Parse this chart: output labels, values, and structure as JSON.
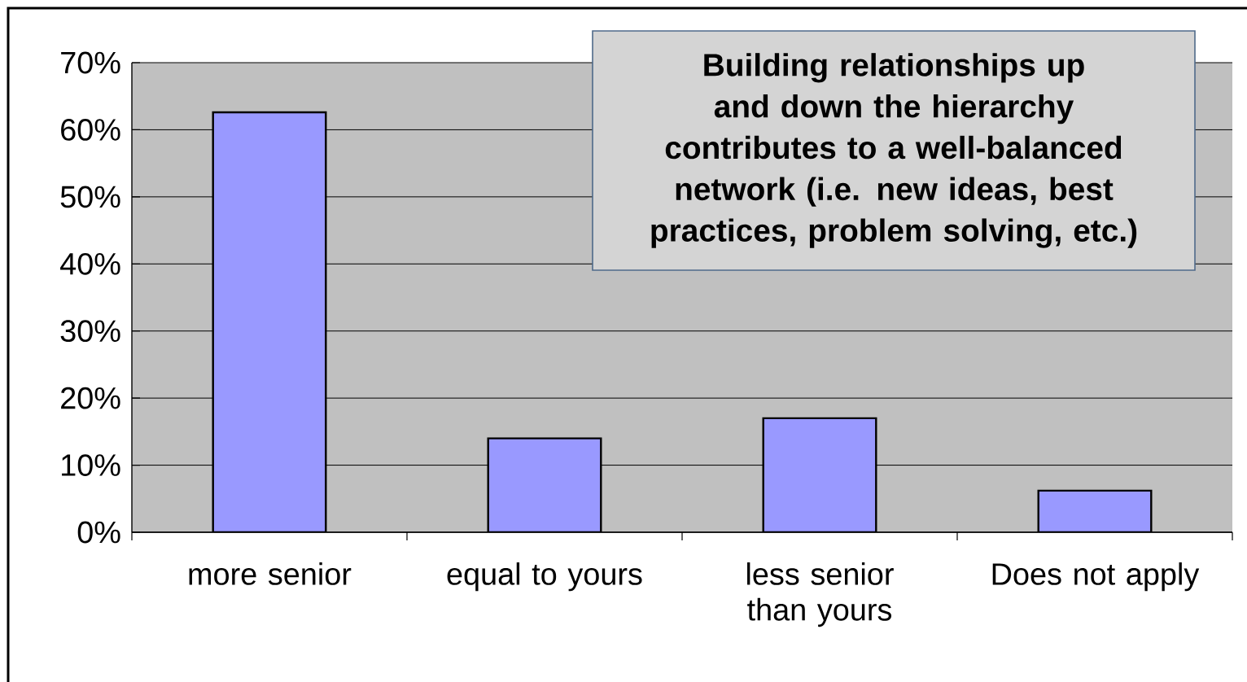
{
  "chart_data": {
    "type": "bar",
    "categories": [
      "more senior",
      "equal to yours",
      "less senior than yours",
      "Does not apply"
    ],
    "values": [
      62.6,
      14,
      17,
      6.2
    ],
    "color": "#9999ff",
    "ylim": [
      0,
      70
    ],
    "yticks": [
      {
        "value": 0,
        "label": "0%"
      },
      {
        "value": 10,
        "label": "10%"
      },
      {
        "value": 20,
        "label": "20%"
      },
      {
        "value": 30,
        "label": "30%"
      },
      {
        "value": 40,
        "label": "40%"
      },
      {
        "value": 50,
        "label": "50%"
      },
      {
        "value": 60,
        "label": "60%"
      },
      {
        "value": 70,
        "label": "70%"
      }
    ],
    "grid": "y",
    "annotations": [
      "Building relationships up and down the hierarchy contributes to a well-balanced network (i.e. new ideas, best practices, problem solving, etc.)"
    ]
  }
}
